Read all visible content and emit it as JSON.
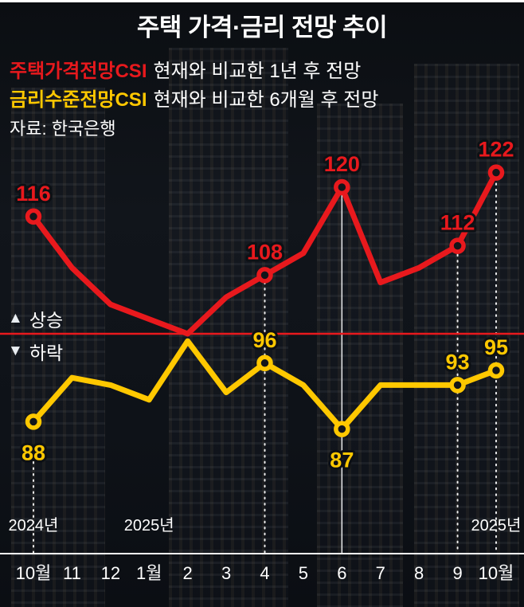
{
  "title": "주택 가격·금리 전망 추이",
  "legend": {
    "series1_desc": "현재와 비교한 1년 후 전망",
    "series2_desc": "현재와 비교한 6개월 후 전망",
    "source": "자료: 한국은행"
  },
  "baseline_labels": {
    "up_symbol": "▲",
    "up_text": "상승",
    "down_symbol": "▼",
    "down_text": "하락"
  },
  "colors": {
    "series1": "#e8191d",
    "series2": "#ffc800",
    "baseline": "#e8191d",
    "axis": "#ffffff",
    "text": "#ffffff",
    "background": "#0d1014"
  },
  "chart_data": {
    "type": "line",
    "x": [
      "10월",
      "11",
      "12",
      "1월",
      "2",
      "3",
      "4",
      "5",
      "6",
      "7",
      "8",
      "9",
      "10월"
    ],
    "year_labels": [
      {
        "index": 0,
        "label": "2024년"
      },
      {
        "index": 3,
        "label": "2025년"
      },
      {
        "index": 12,
        "label": "2025년"
      }
    ],
    "baseline_value": 100,
    "ylim": [
      80,
      128
    ],
    "grid": false,
    "legend_position": "top-left",
    "series": [
      {
        "name": "주택가격전망CSI",
        "color": "#e8191d",
        "values": [
          116,
          109,
          104,
          102,
          100,
          105,
          108,
          111,
          120,
          107,
          109,
          112,
          122
        ],
        "labels": [
          {
            "index": 0,
            "value": 116,
            "pos": "above"
          },
          {
            "index": 6,
            "value": 108,
            "pos": "above"
          },
          {
            "index": 8,
            "value": 120,
            "pos": "above"
          },
          {
            "index": 11,
            "value": 112,
            "pos": "above"
          },
          {
            "index": 12,
            "value": 122,
            "pos": "above"
          }
        ]
      },
      {
        "name": "금리수준전망CSI",
        "color": "#ffc800",
        "values": [
          88,
          94,
          93,
          91,
          99,
          92,
          96,
          93,
          87,
          93,
          93,
          93,
          95
        ],
        "labels": [
          {
            "index": 0,
            "value": 88,
            "pos": "below"
          },
          {
            "index": 6,
            "value": 96,
            "pos": "above"
          },
          {
            "index": 8,
            "value": 87,
            "pos": "below"
          },
          {
            "index": 11,
            "value": 93,
            "pos": "above"
          },
          {
            "index": 12,
            "value": 95,
            "pos": "above"
          }
        ]
      }
    ],
    "reference_lines": [
      {
        "index": 0,
        "style": "dotted",
        "from_value": 82.5
      },
      {
        "index": 6,
        "style": "dotted",
        "from_value": 107
      },
      {
        "index": 8,
        "style": "solid",
        "from_value": 119
      },
      {
        "index": 11,
        "style": "dotted",
        "from_value": 110.8
      },
      {
        "index": 12,
        "style": "dotted",
        "from_value": 120.5
      }
    ]
  }
}
